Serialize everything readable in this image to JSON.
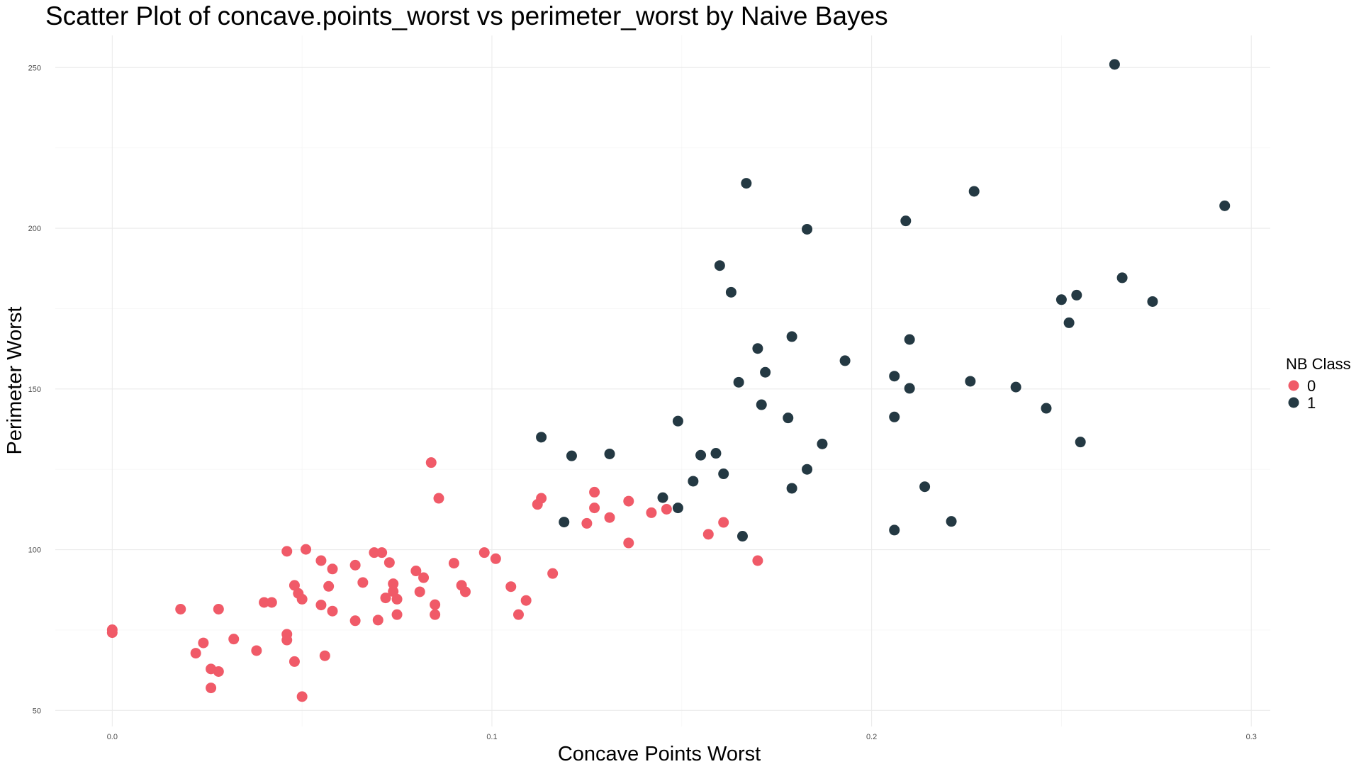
{
  "chart_data": {
    "type": "scatter",
    "title": "Scatter Plot of concave.points_worst vs perimeter_worst by Naive Bayes",
    "xlabel": "Concave Points Worst",
    "ylabel": "Perimeter Worst",
    "xlim": [
      -0.015,
      0.305
    ],
    "ylim": [
      45,
      260
    ],
    "x_ticks": [
      0.0,
      0.1,
      0.2,
      0.3
    ],
    "x_tick_labels": [
      "0.0",
      "0.1",
      "0.2",
      "0.3"
    ],
    "y_ticks": [
      50,
      100,
      150,
      200,
      250
    ],
    "y_tick_labels": [
      "50",
      "100",
      "150",
      "200",
      "250"
    ],
    "grid": true,
    "legend": {
      "title": "NB Class",
      "position": "right",
      "entries": [
        {
          "label": "0",
          "color": "#f05a68"
        },
        {
          "label": "1",
          "color": "#243943"
        }
      ]
    },
    "series": [
      {
        "name": "0",
        "color": "#f05a68",
        "points": [
          [
            0.0,
            75.1
          ],
          [
            0.0,
            74.2
          ],
          [
            0.018,
            81.5
          ],
          [
            0.022,
            67.8
          ],
          [
            0.024,
            71.0
          ],
          [
            0.026,
            62.9
          ],
          [
            0.026,
            57.0
          ],
          [
            0.028,
            62.1
          ],
          [
            0.028,
            81.5
          ],
          [
            0.032,
            72.2
          ],
          [
            0.038,
            68.6
          ],
          [
            0.04,
            83.6
          ],
          [
            0.042,
            83.6
          ],
          [
            0.046,
            99.5
          ],
          [
            0.046,
            73.7
          ],
          [
            0.046,
            71.9
          ],
          [
            0.048,
            88.9
          ],
          [
            0.048,
            65.2
          ],
          [
            0.049,
            86.4
          ],
          [
            0.05,
            84.6
          ],
          [
            0.05,
            54.3
          ],
          [
            0.051,
            100.1
          ],
          [
            0.055,
            82.8
          ],
          [
            0.055,
            96.6
          ],
          [
            0.056,
            67.0
          ],
          [
            0.057,
            88.6
          ],
          [
            0.058,
            80.9
          ],
          [
            0.058,
            94.0
          ],
          [
            0.064,
            95.2
          ],
          [
            0.064,
            77.9
          ],
          [
            0.066,
            89.8
          ],
          [
            0.069,
            99.1
          ],
          [
            0.07,
            78.1
          ],
          [
            0.071,
            99.1
          ],
          [
            0.072,
            85.0
          ],
          [
            0.073,
            96.0
          ],
          [
            0.074,
            89.4
          ],
          [
            0.074,
            87.0
          ],
          [
            0.075,
            84.6
          ],
          [
            0.075,
            79.8
          ],
          [
            0.08,
            93.4
          ],
          [
            0.081,
            86.9
          ],
          [
            0.082,
            91.3
          ],
          [
            0.084,
            127.1
          ],
          [
            0.085,
            82.9
          ],
          [
            0.085,
            79.8
          ],
          [
            0.086,
            116.0
          ],
          [
            0.09,
            95.8
          ],
          [
            0.092,
            88.9
          ],
          [
            0.093,
            86.9
          ],
          [
            0.098,
            99.1
          ],
          [
            0.101,
            97.2
          ],
          [
            0.105,
            88.5
          ],
          [
            0.107,
            79.8
          ],
          [
            0.109,
            84.2
          ],
          [
            0.112,
            114.1
          ],
          [
            0.113,
            116.0
          ],
          [
            0.116,
            92.6
          ],
          [
            0.125,
            108.2
          ],
          [
            0.127,
            117.9
          ],
          [
            0.127,
            113.0
          ],
          [
            0.131,
            110.0
          ],
          [
            0.136,
            115.1
          ],
          [
            0.136,
            102.1
          ],
          [
            0.142,
            111.5
          ],
          [
            0.146,
            112.6
          ],
          [
            0.157,
            104.8
          ],
          [
            0.161,
            108.5
          ],
          [
            0.17,
            96.6
          ]
        ]
      },
      {
        "name": "1",
        "color": "#243943",
        "points": [
          [
            0.113,
            135.0
          ],
          [
            0.119,
            108.6
          ],
          [
            0.121,
            129.2
          ],
          [
            0.131,
            129.8
          ],
          [
            0.145,
            116.2
          ],
          [
            0.149,
            140.0
          ],
          [
            0.149,
            113.0
          ],
          [
            0.153,
            121.3
          ],
          [
            0.155,
            129.4
          ],
          [
            0.159,
            130.0
          ],
          [
            0.16,
            188.4
          ],
          [
            0.161,
            123.6
          ],
          [
            0.163,
            180.1
          ],
          [
            0.165,
            152.1
          ],
          [
            0.166,
            104.2
          ],
          [
            0.167,
            214.0
          ],
          [
            0.17,
            162.6
          ],
          [
            0.171,
            145.1
          ],
          [
            0.172,
            155.2
          ],
          [
            0.178,
            141.0
          ],
          [
            0.179,
            119.1
          ],
          [
            0.179,
            166.3
          ],
          [
            0.183,
            199.7
          ],
          [
            0.183,
            125.0
          ],
          [
            0.187,
            132.9
          ],
          [
            0.193,
            158.8
          ],
          [
            0.206,
            154.0
          ],
          [
            0.206,
            106.1
          ],
          [
            0.206,
            141.3
          ],
          [
            0.209,
            202.3
          ],
          [
            0.21,
            150.2
          ],
          [
            0.21,
            165.4
          ],
          [
            0.214,
            119.6
          ],
          [
            0.221,
            108.8
          ],
          [
            0.226,
            152.4
          ],
          [
            0.227,
            211.5
          ],
          [
            0.238,
            150.6
          ],
          [
            0.246,
            144.0
          ],
          [
            0.25,
            177.8
          ],
          [
            0.252,
            170.6
          ],
          [
            0.254,
            179.2
          ],
          [
            0.255,
            133.5
          ],
          [
            0.264,
            251.0
          ],
          [
            0.266,
            184.6
          ],
          [
            0.274,
            177.2
          ],
          [
            0.293,
            207.0
          ]
        ]
      }
    ]
  }
}
